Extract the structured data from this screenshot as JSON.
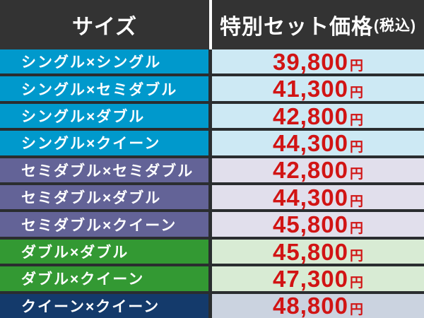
{
  "chart_data": {
    "type": "table",
    "title": "特別セット価格表",
    "columns": [
      "サイズ",
      "特別セット価格(税込)"
    ],
    "rows": [
      [
        "シングル×シングル",
        "39,800円"
      ],
      [
        "シングル×セミダブル",
        "41,300円"
      ],
      [
        "シングル×ダブル",
        "42,800円"
      ],
      [
        "シングル×クイーン",
        "44,300円"
      ],
      [
        "セミダブル×セミダブル",
        "42,800円"
      ],
      [
        "セミダブル×ダブル",
        "44,300円"
      ],
      [
        "セミダブル×クイーン",
        "45,800円"
      ],
      [
        "ダブル×ダブル",
        "45,800円"
      ],
      [
        "ダブル×クイーン",
        "47,300円"
      ],
      [
        "クイーン×クイーン",
        "48,800円"
      ]
    ],
    "prices_yen": [
      39800,
      41300,
      42800,
      44300,
      42800,
      44300,
      45800,
      45800,
      47300,
      48800
    ]
  },
  "table": {
    "header": {
      "size": "サイズ",
      "price": "特別セット価格",
      "price_suffix": "(税込)"
    },
    "rows": [
      {
        "size": "シングル×シングル",
        "price": "39,800",
        "currency": "円"
      },
      {
        "size": "シングル×セミダブル",
        "price": "41,300",
        "currency": "円"
      },
      {
        "size": "シングル×ダブル",
        "price": "42,800",
        "currency": "円"
      },
      {
        "size": "シングル×クイーン",
        "price": "44,300",
        "currency": "円"
      },
      {
        "size": "セミダブル×セミダブル",
        "price": "42,800",
        "currency": "円"
      },
      {
        "size": "セミダブル×ダブル",
        "price": "44,300",
        "currency": "円"
      },
      {
        "size": "セミダブル×クイーン",
        "price": "45,800",
        "currency": "円"
      },
      {
        "size": "ダブル×ダブル",
        "price": "45,800",
        "currency": "円"
      },
      {
        "size": "ダブル×クイーン",
        "price": "47,300",
        "currency": "円"
      },
      {
        "size": "クイーン×クイーン",
        "price": "48,800",
        "currency": "円"
      }
    ]
  },
  "colors": {
    "header_bg": "#333333",
    "header_text": "#ffffff",
    "header_divider": "#ffffff",
    "divider": "#2a2d2f",
    "size_text": "#ffffff",
    "price_text": "#d11414",
    "blue": "#0099cc",
    "blue_light": "#cde9f4",
    "purple": "#636397",
    "purple_light": "#e1dfec",
    "green": "#339933",
    "green_light": "#d8ebd4",
    "navy": "#143a6b",
    "navy_light": "#cbd3e0"
  }
}
